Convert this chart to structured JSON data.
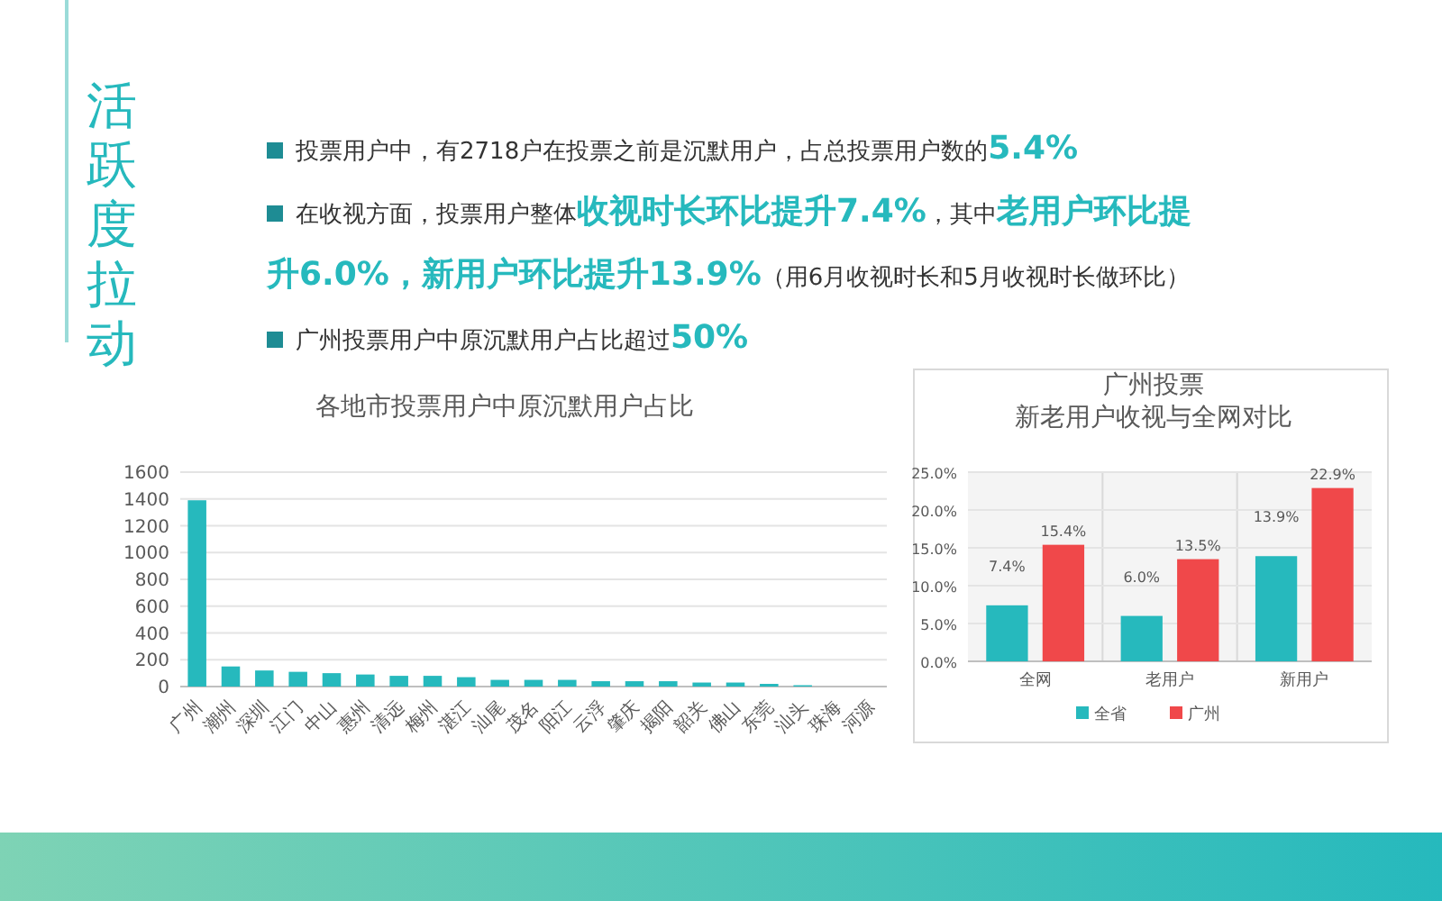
{
  "chart_data": [
    {
      "type": "other",
      "title": "活跃度拉动",
      "annotations": [
        "投票用户中，有2718户在投票之前是沉默用户，占总投票用户数的**5.4%**",
        "在收视方面，投票用户整体**收视时长环比提升7.4%**，其中**老用户环比提升6.0%，新用户环比提升13.9%**（用6月收视时长和5月收视时长做环比）",
        "广州投票用户中原沉默用户占比超过**50%**"
      ]
    },
    {
      "type": "bar",
      "title": "各地市投票用户中原沉默用户占比",
      "categories": [
        "广州",
        "潮州",
        "深圳",
        "江门",
        "中山",
        "惠州",
        "清远",
        "梅州",
        "湛江",
        "汕尾",
        "茂名",
        "阳江",
        "云浮",
        "肇庆",
        "揭阳",
        "韶关",
        "佛山",
        "东莞",
        "汕头",
        "珠海",
        "河源"
      ],
      "values": [
        1390,
        150,
        120,
        110,
        100,
        90,
        80,
        80,
        70,
        50,
        50,
        50,
        40,
        40,
        40,
        30,
        30,
        20,
        10,
        0,
        0
      ],
      "color": "#26b9bd",
      "ylim": [
        0,
        1600
      ],
      "yticks": [
        0,
        200,
        400,
        600,
        800,
        1000,
        1200,
        1400,
        1600
      ],
      "grid": "y",
      "legend": false
    },
    {
      "type": "bar",
      "title": "广州投票",
      "subtitle": "新老用户收视与全网对比",
      "categories": [
        "全网",
        "老用户",
        "新用户"
      ],
      "series": [
        {
          "name": "全省",
          "color": "#26b9bd",
          "values": [
            7.4,
            6.0,
            13.9
          ],
          "value_labels": [
            "7.4%",
            "6.0%",
            "13.9%"
          ]
        },
        {
          "name": "广州",
          "color": "#f0484a",
          "values": [
            15.4,
            13.5,
            22.9
          ],
          "value_labels": [
            "15.4%",
            "13.5%",
            "22.9%"
          ]
        }
      ],
      "ylim": [
        0,
        25
      ],
      "yticks": [
        {
          "value": 0,
          "label": "0.0%"
        },
        {
          "value": 5,
          "label": "5.0%"
        },
        {
          "value": 10,
          "label": "10.0%"
        },
        {
          "value": 15,
          "label": "15.0%"
        },
        {
          "value": 20,
          "label": "20.0%"
        },
        {
          "value": 25,
          "label": "25.0%"
        }
      ],
      "grid": true,
      "legend": "bottom"
    }
  ]
}
